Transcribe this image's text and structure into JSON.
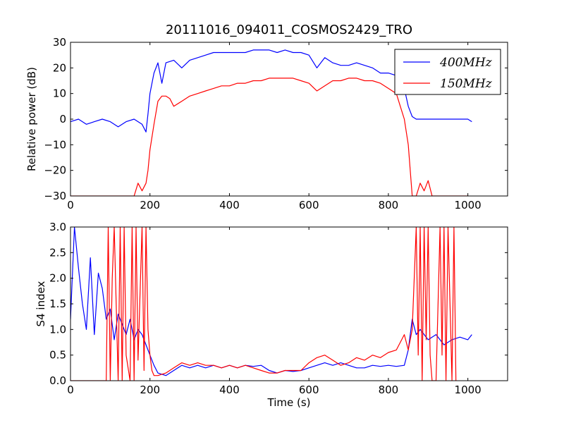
{
  "figure": {
    "title": "20111016_094011_COSMOS2429_TRO",
    "colors": {
      "f400": "#0000ff",
      "f150": "#ff0000",
      "axes": "#000000",
      "background": "#ffffff"
    }
  },
  "chart_data": [
    {
      "type": "line",
      "title": "20111016_094011_COSMOS2429_TRO",
      "xlabel": "",
      "ylabel": "Relative power (dB)",
      "xlim": [
        0,
        1100
      ],
      "ylim": [
        -30,
        30
      ],
      "xticks": [
        "0",
        "200",
        "400",
        "600",
        "800",
        "1000"
      ],
      "yticks": [
        "−30",
        "−20",
        "−10",
        "0",
        "10",
        "20",
        "30"
      ],
      "grid": false,
      "legend_position": "top-right",
      "series": [
        {
          "name": "400MHz",
          "color": "#0000ff",
          "x": [
            0,
            20,
            40,
            60,
            80,
            100,
            120,
            140,
            160,
            180,
            190,
            195,
            200,
            210,
            220,
            230,
            240,
            260,
            280,
            300,
            320,
            340,
            360,
            380,
            400,
            420,
            440,
            460,
            480,
            500,
            520,
            540,
            560,
            580,
            600,
            620,
            640,
            660,
            680,
            700,
            720,
            740,
            760,
            780,
            800,
            820,
            830,
            840,
            850,
            860,
            870,
            880,
            900,
            920,
            940,
            960,
            980,
            1000,
            1010
          ],
          "y": [
            -1,
            0,
            -2,
            -1,
            0,
            -1,
            -3,
            -1,
            0,
            -2,
            -5,
            2,
            10,
            18,
            22,
            14,
            22,
            23,
            20,
            23,
            24,
            25,
            26,
            26,
            26,
            26,
            26,
            27,
            27,
            27,
            26,
            27,
            26,
            26,
            25,
            20,
            24,
            22,
            21,
            21,
            22,
            21,
            20,
            18,
            18,
            17,
            16,
            12,
            5,
            1,
            0,
            0,
            0,
            0,
            0,
            0,
            0,
            0,
            -1
          ]
        },
        {
          "name": "150MHz",
          "color": "#ff0000",
          "x": [
            0,
            100,
            110,
            120,
            140,
            160,
            170,
            180,
            190,
            195,
            200,
            210,
            220,
            230,
            240,
            250,
            260,
            280,
            300,
            320,
            340,
            360,
            380,
            400,
            420,
            440,
            460,
            480,
            500,
            520,
            540,
            560,
            580,
            600,
            620,
            640,
            660,
            680,
            700,
            720,
            740,
            760,
            780,
            800,
            820,
            830,
            840,
            850,
            855,
            860,
            870,
            880,
            890,
            900,
            910,
            920,
            1000
          ],
          "y": [
            -30,
            -30,
            -30,
            -30,
            -30,
            -30,
            -25,
            -28,
            -25,
            -20,
            -12,
            -2,
            7,
            9,
            9,
            8,
            5,
            7,
            9,
            10,
            11,
            12,
            13,
            13,
            14,
            14,
            15,
            15,
            16,
            16,
            16,
            16,
            15,
            14,
            11,
            13,
            15,
            15,
            16,
            16,
            15,
            15,
            14,
            12,
            10,
            5,
            0,
            -10,
            -20,
            -30,
            -30,
            -25,
            -28,
            -24,
            -30,
            -30,
            -30
          ]
        }
      ]
    },
    {
      "type": "line",
      "xlabel": "Time (s)",
      "ylabel": "S4 index",
      "xlim": [
        0,
        1100
      ],
      "ylim": [
        0,
        3
      ],
      "xticks": [
        "0",
        "200",
        "400",
        "600",
        "800",
        "1000"
      ],
      "yticks": [
        "0.0",
        "0.5",
        "1.0",
        "1.5",
        "2.0",
        "2.5",
        "3.0"
      ],
      "grid": false,
      "series": [
        {
          "name": "400MHz",
          "color": "#0000ff",
          "x": [
            0,
            10,
            20,
            30,
            40,
            50,
            60,
            70,
            80,
            90,
            100,
            110,
            120,
            130,
            140,
            150,
            160,
            170,
            180,
            190,
            200,
            210,
            220,
            240,
            260,
            280,
            300,
            320,
            340,
            360,
            380,
            400,
            420,
            440,
            460,
            480,
            500,
            520,
            540,
            560,
            580,
            600,
            620,
            640,
            660,
            680,
            700,
            720,
            740,
            760,
            780,
            800,
            820,
            840,
            850,
            860,
            870,
            880,
            900,
            920,
            940,
            960,
            980,
            1000,
            1010
          ],
          "y": [
            1.2,
            3.0,
            2.2,
            1.5,
            1.0,
            2.4,
            0.9,
            2.1,
            1.8,
            1.2,
            1.4,
            0.8,
            1.3,
            1.1,
            0.9,
            1.2,
            0.8,
            1.0,
            0.9,
            0.7,
            0.5,
            0.3,
            0.15,
            0.1,
            0.2,
            0.3,
            0.25,
            0.3,
            0.25,
            0.3,
            0.25,
            0.3,
            0.25,
            0.3,
            0.28,
            0.3,
            0.2,
            0.15,
            0.2,
            0.18,
            0.2,
            0.25,
            0.3,
            0.35,
            0.3,
            0.35,
            0.3,
            0.25,
            0.25,
            0.3,
            0.28,
            0.3,
            0.28,
            0.3,
            0.6,
            1.2,
            0.9,
            1.0,
            0.8,
            0.9,
            0.7,
            0.8,
            0.85,
            0.8,
            0.9
          ]
        },
        {
          "name": "150MHz",
          "color": "#ff0000",
          "x": [
            0,
            90,
            95,
            100,
            105,
            110,
            120,
            125,
            130,
            135,
            140,
            150,
            155,
            160,
            165,
            170,
            180,
            185,
            190,
            195,
            200,
            205,
            210,
            220,
            240,
            260,
            280,
            300,
            320,
            340,
            360,
            380,
            400,
            420,
            440,
            460,
            480,
            500,
            520,
            540,
            560,
            580,
            600,
            620,
            640,
            660,
            680,
            700,
            720,
            740,
            760,
            780,
            800,
            820,
            840,
            850,
            860,
            870,
            875,
            880,
            885,
            890,
            895,
            900,
            905,
            910,
            920,
            930,
            935,
            940,
            945,
            950,
            960,
            965,
            970
          ],
          "y": [
            0,
            0,
            3.0,
            0,
            2.0,
            3.0,
            0,
            3.0,
            0,
            3.0,
            0.5,
            0,
            3.0,
            0,
            3.0,
            0.4,
            3.0,
            0.2,
            3.0,
            1.0,
            0.5,
            0.2,
            0.1,
            0.1,
            0.15,
            0.25,
            0.35,
            0.3,
            0.35,
            0.3,
            0.3,
            0.25,
            0.3,
            0.25,
            0.3,
            0.25,
            0.2,
            0.15,
            0.15,
            0.2,
            0.2,
            0.2,
            0.35,
            0.45,
            0.5,
            0.4,
            0.3,
            0.35,
            0.45,
            0.4,
            0.5,
            0.45,
            0.55,
            0.6,
            0.9,
            0.6,
            1.0,
            3.0,
            0.5,
            3.0,
            0,
            3.0,
            0.8,
            3.0,
            0.5,
            0,
            0,
            3.0,
            0.5,
            3.0,
            0,
            3.0,
            0,
            3.0,
            0
          ]
        }
      ]
    }
  ]
}
